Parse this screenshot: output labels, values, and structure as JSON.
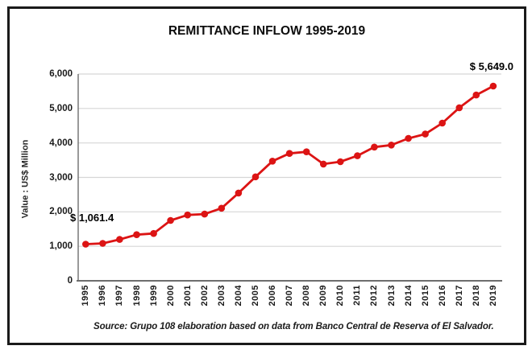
{
  "window": {
    "background_color": "#ffffff",
    "frame_border_color": "#1a1a1a"
  },
  "chart_data": {
    "type": "line",
    "title": "REMITTANCE INFLOW 1995-2019",
    "ylabel": "Value : US$ Million",
    "xlabel": "",
    "categories": [
      "1995",
      "1996",
      "1997",
      "1998",
      "1999",
      "2000",
      "2001",
      "2002",
      "2003",
      "2004",
      "2005",
      "2006",
      "2007",
      "2008",
      "2009",
      "2010",
      "2011",
      "2012",
      "2013",
      "2014",
      "2015",
      "2016",
      "2017",
      "2018",
      "2019"
    ],
    "series": [
      {
        "name": "Remittance inflow",
        "values": [
          1061.4,
          1086.5,
          1199.5,
          1338.3,
          1373.8,
          1750.7,
          1910.5,
          1935.2,
          2105.3,
          2547.6,
          3017.2,
          3470.9,
          3695.3,
          3742.1,
          3387.2,
          3455.3,
          3627.5,
          3879.7,
          3937.4,
          4133.0,
          4257.2,
          4576.0,
          5021.3,
          5390.8,
          5649.0
        ]
      }
    ],
    "ylim": [
      0,
      6000
    ],
    "ytick_step": 1000,
    "ytick_labels": [
      "0",
      "1,000",
      "2,000",
      "3,000",
      "4,000",
      "5,000",
      "6,000"
    ],
    "grid": "horizontal",
    "legend": "none",
    "line_color": "#DC1414",
    "marker": "circle",
    "gridline_color": "#D6D6D6",
    "axis_color": "#6E6E6E",
    "annotations": [
      {
        "target": "first-point",
        "label": "$ 1,061.4"
      },
      {
        "target": "last-point",
        "label": "$ 5,649.0"
      }
    ],
    "source_note": "Source: Grupo 108 elaboration based on data from Banco Central de Reserva of El Salvador."
  }
}
